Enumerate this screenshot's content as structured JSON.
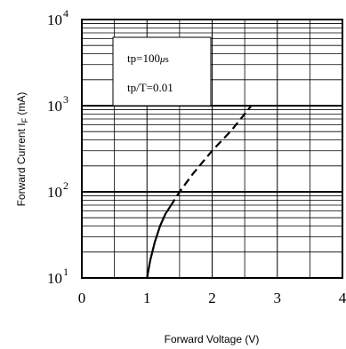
{
  "chart_data": {
    "type": "line",
    "xlabel": "Forward Voltage (V)",
    "ylabel": {
      "main": "Forward Current I",
      "sub": "F",
      "unit": " (mA)"
    },
    "xlim": [
      0,
      4
    ],
    "ylim": [
      10,
      10000
    ],
    "y_scale": "log",
    "grid": true,
    "x_ticks": [
      {
        "value": 0,
        "label": "0"
      },
      {
        "value": 1,
        "label": "1"
      },
      {
        "value": 2,
        "label": "2"
      },
      {
        "value": 3,
        "label": "3"
      },
      {
        "value": 4,
        "label": "4"
      }
    ],
    "y_ticks": [
      {
        "value": 10,
        "base": "10",
        "exp": "1"
      },
      {
        "value": 100,
        "base": "10",
        "exp": "2"
      },
      {
        "value": 1000,
        "base": "10",
        "exp": "3"
      },
      {
        "value": 10000,
        "base": "10",
        "exp": "4"
      }
    ],
    "series": [
      {
        "style": "solid",
        "x": [
          1.0,
          1.05,
          1.12,
          1.2,
          1.28,
          1.36
        ],
        "y": [
          10,
          16,
          26,
          40,
          55,
          68
        ]
      },
      {
        "style": "dashed",
        "x": [
          1.36,
          1.5,
          1.7,
          2.0,
          2.3,
          2.6
        ],
        "y": [
          68,
          100,
          160,
          300,
          520,
          1000
        ]
      }
    ],
    "annotations": [
      {
        "parts": [
          "tp=100",
          "μ",
          "s"
        ]
      },
      {
        "parts": [
          "tp/T=0.01"
        ]
      }
    ]
  }
}
